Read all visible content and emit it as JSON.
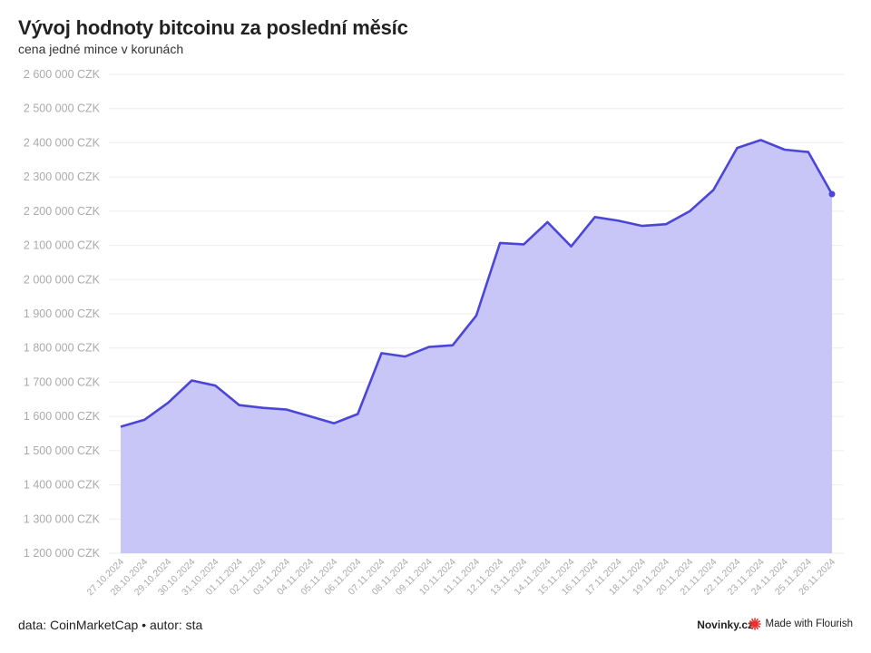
{
  "header": {
    "title": "Vývoj hodnoty bitcoinu za poslední měsíc",
    "subtitle": "cena jedné mince v korunách"
  },
  "footer": {
    "source": "data: CoinMarketCap • autor: sta",
    "brand": "Novinky.cz",
    "made_with": "Made with Flourish"
  },
  "colors": {
    "line": "#4b46d8",
    "area": "#c7c6f6",
    "grid": "#eeeeee",
    "tick_text": "#aaaaaa",
    "flourish_icon": "#e8302f"
  },
  "icons": {
    "flourish": "flourish-burst-icon"
  },
  "chart_data": {
    "type": "area",
    "title": "Vývoj hodnoty bitcoinu za poslední měsíc",
    "subtitle": "cena jedné mince v korunách",
    "ylim": [
      1200000,
      2600000
    ],
    "y_ticks": [
      1200000,
      1300000,
      1400000,
      1500000,
      1600000,
      1700000,
      1800000,
      1900000,
      2000000,
      2100000,
      2200000,
      2300000,
      2400000,
      2500000,
      2600000
    ],
    "y_tick_labels": [
      "1 200 000 CZK",
      "1 300 000 CZK",
      "1 400 000 CZK",
      "1 500 000 CZK",
      "1 600 000 CZK",
      "1 700 000 CZK",
      "1 800 000 CZK",
      "1 900 000 CZK",
      "2 000 000 CZK",
      "2 100 000 CZK",
      "2 200 000 CZK",
      "2 300 000 CZK",
      "2 400 000 CZK",
      "2 500 000 CZK",
      "2 600 000 CZK"
    ],
    "grid": true,
    "x": [
      "27.10.2024",
      "28.10.2024",
      "29.10.2024",
      "30.10.2024",
      "31.10.2024",
      "01.11.2024",
      "02.11.2024",
      "03.11.2024",
      "04.11.2024",
      "05.11.2024",
      "06.11.2024",
      "07.11.2024",
      "08.11.2024",
      "09.11.2024",
      "10.11.2024",
      "11.11.2024",
      "12.11.2024",
      "13.11.2024",
      "14.11.2024",
      "15.11.2024",
      "16.11.2024",
      "17.11.2024",
      "18.11.2024",
      "19.11.2024",
      "20.11.2024",
      "21.11.2024",
      "22.11.2024",
      "23.11.2024",
      "24.11.2024",
      "25.11.2024",
      "26.11.2024"
    ],
    "values": [
      1570000,
      1590000,
      1640000,
      1705000,
      1690000,
      1633000,
      1625000,
      1620000,
      1600000,
      1580000,
      1607000,
      1785000,
      1775000,
      1803000,
      1808000,
      1895000,
      2107000,
      2103000,
      2168000,
      2097000,
      2183000,
      2172000,
      2157000,
      2162000,
      2200000,
      2262000,
      2385000,
      2408000,
      2380000,
      2373000,
      2250000
    ]
  }
}
